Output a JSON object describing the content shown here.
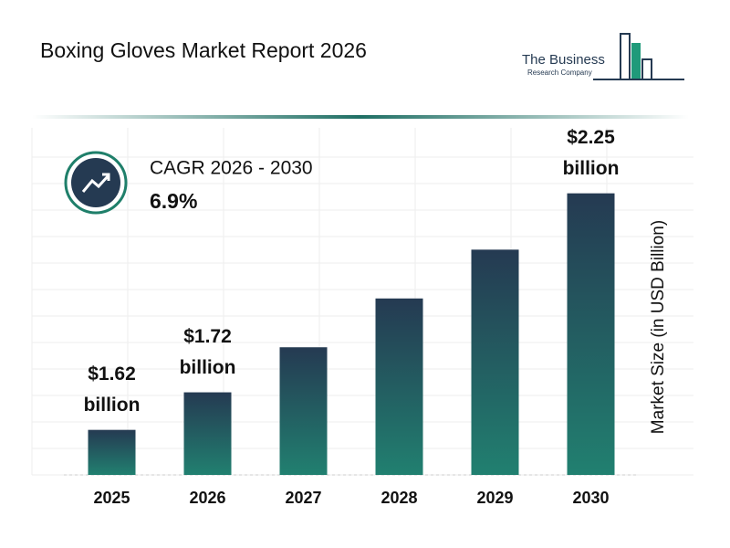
{
  "title": "Boxing Gloves Market Report 2026",
  "logo": {
    "line1": "The Business",
    "line2": "Research Company"
  },
  "cagr": {
    "label": "CAGR 2026 - 2030",
    "value": "6.9%"
  },
  "chart_data": {
    "type": "bar",
    "y_label": "Market Size (in USD Billion)",
    "categories": [
      "2025",
      "2026",
      "2027",
      "2028",
      "2029",
      "2030"
    ],
    "values": [
      1.62,
      1.72,
      1.84,
      1.97,
      2.1,
      2.25
    ],
    "value_labels": [
      "$1.62 billion",
      "$1.72 billion",
      null,
      null,
      null,
      "$2.25 billion"
    ],
    "gradient": [
      "#253a52",
      "#218070"
    ],
    "ylim": [
      1.5,
      2.4
    ],
    "grid": true
  }
}
